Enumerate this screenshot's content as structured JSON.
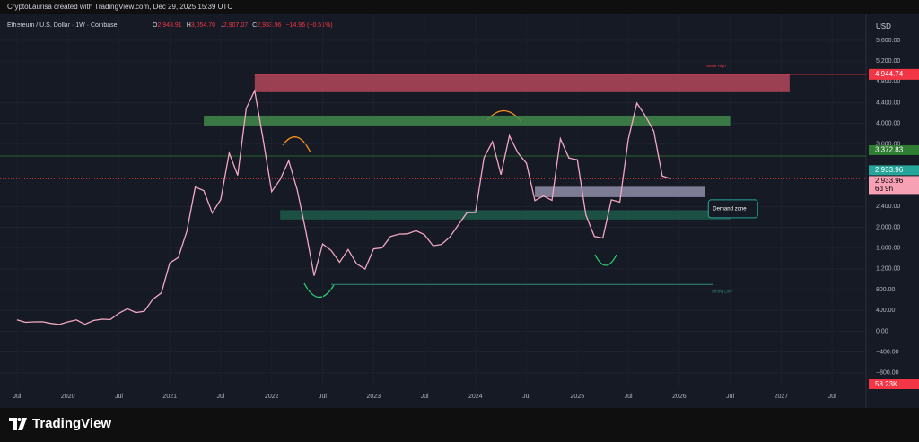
{
  "chart_data": {
    "type": "line",
    "credit": "CryptoLaurisa created with TradingView.com, Dec 29, 2025 15:39 UTC",
    "title": "Ethereum / U.S. Dollar · 1W · Coinbase",
    "ohlc": [
      {
        "key": "O",
        "value": 2948.91,
        "label": "2,948.91"
      },
      {
        "key": "H",
        "value": 3054.7,
        "label": "3,054.70"
      },
      {
        "key": "L",
        "value": 2907.07,
        "label": "2,907.07"
      },
      {
        "key": "C",
        "value": 2933.96,
        "label": "2,933.96"
      }
    ],
    "change": "−14.96 (−0.51%)",
    "currency": "USD",
    "brand": "TradingView",
    "x": [
      "2019-07",
      "2019-08",
      "2019-09",
      "2019-10",
      "2019-11",
      "2019-12",
      "2020-01",
      "2020-02",
      "2020-03",
      "2020-04",
      "2020-05",
      "2020-06",
      "2020-07",
      "2020-08",
      "2020-09",
      "2020-10",
      "2020-11",
      "2020-12",
      "2021-01",
      "2021-02",
      "2021-03",
      "2021-04",
      "2021-05",
      "2021-06",
      "2021-07",
      "2021-08",
      "2021-09",
      "2021-10",
      "2021-11",
      "2021-12",
      "2022-01",
      "2022-02",
      "2022-03",
      "2022-04",
      "2022-05",
      "2022-06",
      "2022-07",
      "2022-08",
      "2022-09",
      "2022-10",
      "2022-11",
      "2022-12",
      "2023-01",
      "2023-02",
      "2023-03",
      "2023-04",
      "2023-05",
      "2023-06",
      "2023-07",
      "2023-08",
      "2023-09",
      "2023-10",
      "2023-11",
      "2023-12",
      "2024-01",
      "2024-02",
      "2024-03",
      "2024-04",
      "2024-05",
      "2024-06",
      "2024-07",
      "2024-08",
      "2024-09",
      "2024-10",
      "2024-11",
      "2024-12",
      "2025-01",
      "2025-02",
      "2025-03",
      "2025-04",
      "2025-05",
      "2025-06",
      "2025-07",
      "2025-08",
      "2025-09",
      "2025-10",
      "2025-11",
      "2025-12"
    ],
    "series": [
      {
        "name": "Ethereum / U.S. Dollar",
        "color": "#f2a7c3",
        "values": [
          218,
          172,
          180,
          182,
          151,
          130,
          180,
          218,
          133,
          206,
          231,
          225,
          345,
          434,
          359,
          386,
          614,
          737,
          1314,
          1418,
          1918,
          2773,
          2707,
          2274,
          2536,
          3430,
          3000,
          4288,
          4631,
          3683,
          2688,
          2920,
          3282,
          2727,
          1942,
          1067,
          1679,
          1553,
          1328,
          1572,
          1296,
          1196,
          1585,
          1605,
          1822,
          1870,
          1874,
          1934,
          1857,
          1645,
          1671,
          1815,
          2052,
          2282,
          2283,
          3340,
          3647,
          3012,
          3760,
          3433,
          3232,
          2513,
          2602,
          2518,
          3705,
          3332,
          3300,
          2237,
          1822,
          1794,
          2528,
          2486,
          3698,
          4391,
          4145,
          3848,
          2990,
          2933.96
        ]
      }
    ],
    "xlim": [
      "2019-05",
      "2027-11"
    ],
    "xticks": [
      {
        "value": "2019-07",
        "label": "Jul"
      },
      {
        "value": "2020-01",
        "label": "2020"
      },
      {
        "value": "2020-07",
        "label": "Jul"
      },
      {
        "value": "2021-01",
        "label": "2021"
      },
      {
        "value": "2021-07",
        "label": "Jul"
      },
      {
        "value": "2022-01",
        "label": "2022"
      },
      {
        "value": "2022-07",
        "label": "Jul"
      },
      {
        "value": "2023-01",
        "label": "2023"
      },
      {
        "value": "2023-07",
        "label": "Jul"
      },
      {
        "value": "2024-01",
        "label": "2024"
      },
      {
        "value": "2024-07",
        "label": "Jul"
      },
      {
        "value": "2025-01",
        "label": "2025"
      },
      {
        "value": "2025-07",
        "label": "Jul"
      },
      {
        "value": "2026-01",
        "label": "2026"
      },
      {
        "value": "2026-07",
        "label": "Jul"
      },
      {
        "value": "2027-01",
        "label": "2027"
      },
      {
        "value": "2027-07",
        "label": "Jul"
      }
    ],
    "ylim": [
      -1080,
      6030
    ],
    "yticks": [
      {
        "value": 5600,
        "label": "5,600.00"
      },
      {
        "value": 5200,
        "label": "5,200.00"
      },
      {
        "value": 4800,
        "label": "4,800.00"
      },
      {
        "value": 4400,
        "label": "4,400.00"
      },
      {
        "value": 4000,
        "label": "4,000.00"
      },
      {
        "value": 3600,
        "label": "3,600.00"
      },
      {
        "value": 2400,
        "label": "2,400.00"
      },
      {
        "value": 2000,
        "label": "2,000.00"
      },
      {
        "value": 1600,
        "label": "1,600.00"
      },
      {
        "value": 1200,
        "label": "1,200.00"
      },
      {
        "value": 800,
        "label": "800.00"
      },
      {
        "value": 400,
        "label": "400.00"
      },
      {
        "value": 0,
        "label": "0.00"
      },
      {
        "value": -400,
        "label": "−400.00"
      },
      {
        "value": -800,
        "label": "−800.00"
      }
    ],
    "zones": [
      {
        "x": [
          "2021-11",
          "2027-02"
        ],
        "y": [
          4600,
          4944.74
        ],
        "color": "#b2485a"
      },
      {
        "x": [
          "2021-05",
          "2026-07"
        ],
        "y": [
          3960,
          4150
        ],
        "color": "#3f8a4a"
      },
      {
        "x": [
          "2022-02",
          "2026-07"
        ],
        "y": [
          2150,
          2330
        ],
        "color": "#1e5a4a"
      },
      {
        "x": [
          "2024-08",
          "2026-04"
        ],
        "y": [
          2580,
          2780
        ],
        "color": "#8e8ea8"
      }
    ],
    "levels": [
      {
        "name": "Weak High",
        "value": 4944.74,
        "label": "4,944.74",
        "x": "2021-11",
        "color": "#f23645"
      },
      {
        "name": "Strong Low",
        "value": 900,
        "x": "2022-08",
        "end": "2026-05",
        "color": "#2f8a7a"
      }
    ],
    "demand_label": "Demand zone",
    "price_labels": [
      {
        "value": 3372.83,
        "label": "3,372.83",
        "color": "#2e7d32"
      },
      {
        "value": 2933.96,
        "label": "2,933.96",
        "color": "#26a69a"
      },
      {
        "value": 2933.96,
        "label": "2,933.96",
        "countdown": "6d 9h",
        "color": "#f7a1b5"
      }
    ],
    "volume_label": "58.23K"
  }
}
